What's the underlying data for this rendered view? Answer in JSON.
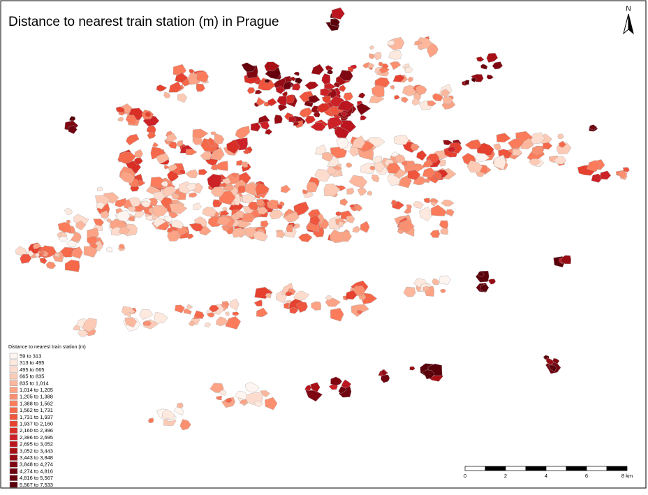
{
  "title": "Distance to nearest train station (m) in Prague",
  "north": "N",
  "legend": {
    "title": "Distance to nearest train station (m)",
    "items": [
      {
        "label": "59 to 313",
        "color": "#fff5f0"
      },
      {
        "label": "313 to 495",
        "color": "#fee9df"
      },
      {
        "label": "495 to 665",
        "color": "#fedccd"
      },
      {
        "label": "665 to 835",
        "color": "#fdcab5"
      },
      {
        "label": "835 to 1,014",
        "color": "#fcb79c"
      },
      {
        "label": "1,014 to 1,205",
        "color": "#fca385"
      },
      {
        "label": "1,205 to 1,388",
        "color": "#fc8f6f"
      },
      {
        "label": "1,388 to 1,562",
        "color": "#fb7b5b"
      },
      {
        "label": "1,562 to 1,731",
        "color": "#f6684a"
      },
      {
        "label": "1,731 to 1,937",
        "color": "#f0553d"
      },
      {
        "label": "1,937 to 2,160",
        "color": "#e6402f"
      },
      {
        "label": "2,160 to 2,396",
        "color": "#d92e26"
      },
      {
        "label": "2,396 to 2,695",
        "color": "#cb2127"
      },
      {
        "label": "2,695 to 3,052",
        "color": "#bb1620"
      },
      {
        "label": "3,052 to 3,443",
        "color": "#a91016"
      },
      {
        "label": "3,443 to 3,848",
        "color": "#960c14"
      },
      {
        "label": "3,848 to 4,274",
        "color": "#7f0712"
      },
      {
        "label": "4,274 to 4,816",
        "color": "#6f030f"
      },
      {
        "label": "4,816 to 5,567",
        "color": "#67000d"
      },
      {
        "label": "5,567 to 7,533",
        "color": "#5a000a"
      }
    ]
  },
  "scale_bar": {
    "labels": [
      "0",
      "2",
      "4",
      "6",
      "8 km"
    ]
  }
}
